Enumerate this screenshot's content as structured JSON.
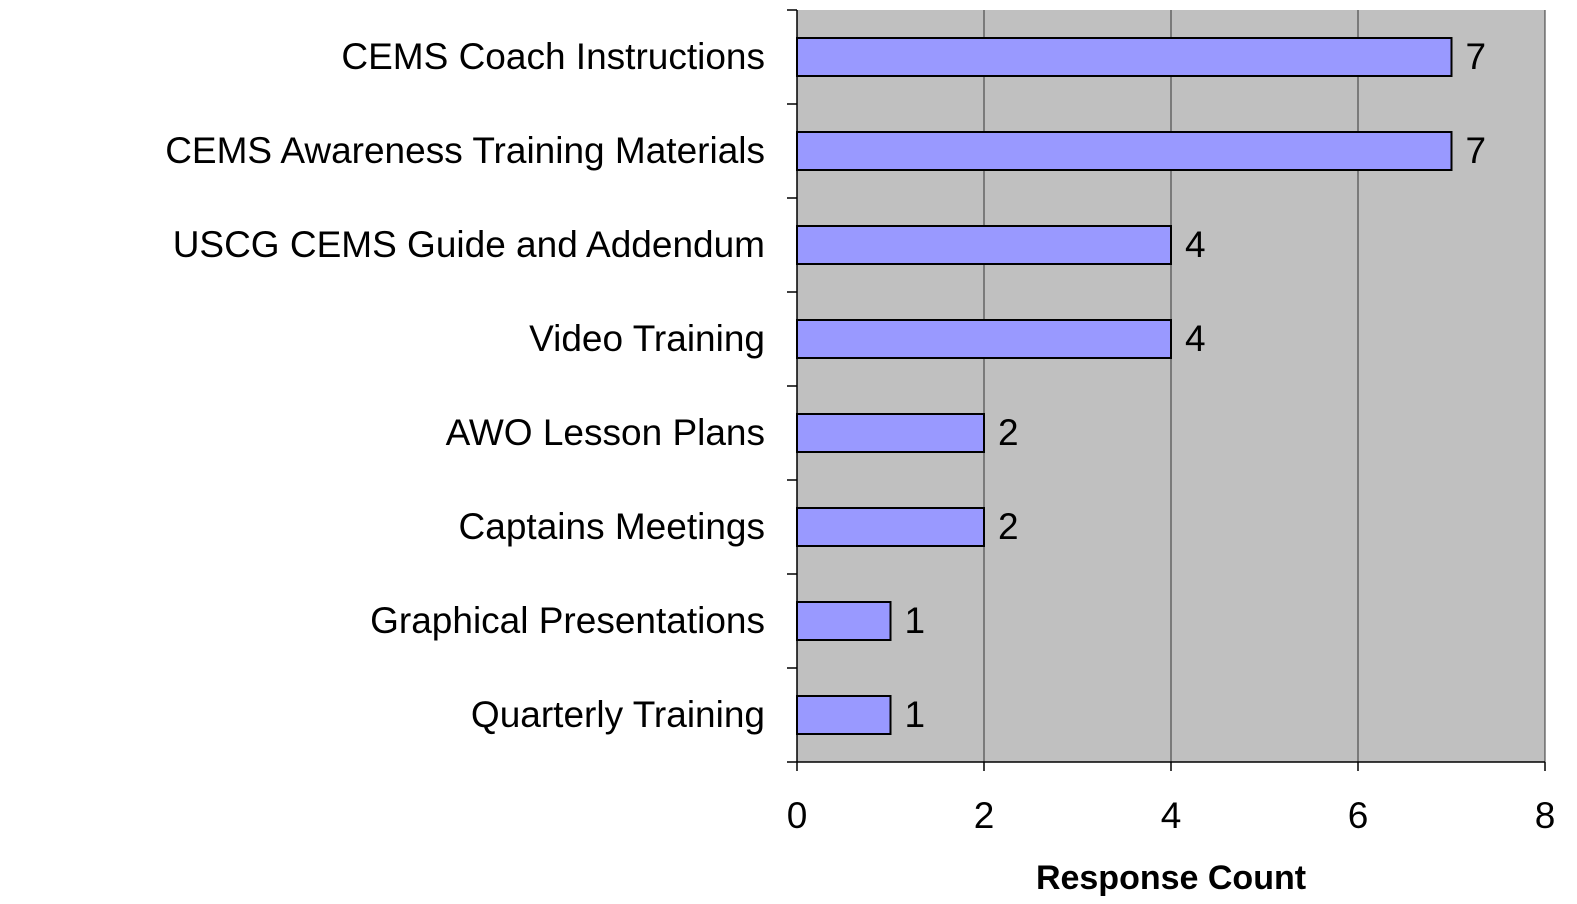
{
  "chart_data": {
    "type": "bar",
    "orientation": "horizontal",
    "categories": [
      "CEMS Coach Instructions",
      "CEMS Awareness Training Materials",
      "USCG CEMS Guide and Addendum",
      "Video Training",
      "AWO Lesson Plans",
      "Captains Meetings",
      "Graphical Presentations",
      "Quarterly Training"
    ],
    "values": [
      7,
      7,
      4,
      4,
      2,
      2,
      1,
      1
    ],
    "color": "#9999ff",
    "xlabel": "Response Count",
    "xlim": [
      0,
      8
    ],
    "xticks": [
      0,
      2,
      4,
      6,
      8
    ],
    "grid": true
  }
}
